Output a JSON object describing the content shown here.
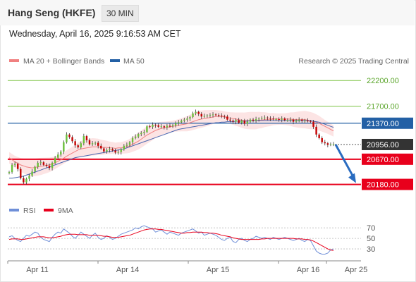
{
  "header": {
    "title": "Hang Seng (HKFE)",
    "timeframe": "30 MIN"
  },
  "datetime": "Wednesday, April 16, 2025 9:16:53 AM CET",
  "legend": {
    "ma20_label": "MA 20 + Bollinger Bands",
    "ma50_label": "MA 50",
    "credit": "Research © 2025 Trading Central",
    "rsi_label": "RSI",
    "rsi_ma_label": "9MA"
  },
  "colors": {
    "support": "#e8001c",
    "resistance": "#7cc442",
    "pivot": "#2360a5",
    "ma20": "#f08080",
    "ma50": "#4a67b0",
    "bollinger_fill": "#fce4e4",
    "candle_up": "#6abf3a",
    "candle_down": "#c40000",
    "rsi": "#6f8fd8",
    "rsi_ma": "#e8001c",
    "arrow": "#2a6cc0"
  },
  "chart_data": {
    "type": "candlestick",
    "ylim": [
      19900,
      22450
    ],
    "x_ticks": [
      "Apr 11",
      "Apr 14",
      "Apr 15",
      "Apr 16",
      "Apr 25"
    ],
    "levels": [
      {
        "value": 22200,
        "label": "22200.00",
        "kind": "resistance"
      },
      {
        "value": 21700,
        "label": "21700.00",
        "kind": "resistance"
      },
      {
        "value": 21370,
        "label": "21370.00",
        "kind": "pivot"
      },
      {
        "value": 20956,
        "label": "20956.00",
        "kind": "last"
      },
      {
        "value": 20670,
        "label": "20670.00",
        "kind": "support"
      },
      {
        "value": 20180,
        "label": "20180.00",
        "kind": "support"
      }
    ],
    "close_series": [
      20420,
      20560,
      20580,
      20480,
      20300,
      20220,
      20290,
      20350,
      20430,
      20520,
      20600,
      20610,
      20560,
      20540,
      20500,
      20600,
      20700,
      20760,
      20820,
      21000,
      21150,
      21100,
      21020,
      20940,
      20900,
      20980,
      21120,
      21040,
      20960,
      20980,
      20990,
      20930,
      20880,
      20820,
      20850,
      20870,
      20840,
      20800,
      20810,
      20860,
      20930,
      20950,
      21000,
      21080,
      21110,
      21160,
      21180,
      21200,
      21310,
      21300,
      21340,
      21330,
      21300,
      21310,
      21290,
      21320,
      21310,
      21330,
      21370,
      21390,
      21420,
      21440,
      21460,
      21490,
      21560,
      21590,
      21550,
      21500,
      21510,
      21520,
      21530,
      21540,
      21530,
      21520,
      21510,
      21500,
      21440,
      21420,
      21400,
      21430,
      21380,
      21420,
      21360,
      21400,
      21440,
      21420,
      21450,
      21460,
      21470,
      21480,
      21470,
      21460,
      21450,
      21450,
      21440,
      21460,
      21430,
      21430,
      21440,
      21400,
      21420,
      21440,
      21420,
      21420,
      21410,
      21400,
      21300,
      21150,
      21080,
      21000,
      20980,
      20950,
      20960,
      20960
    ],
    "ma20_series": [
      20700,
      20660,
      20620,
      20590,
      20560,
      20540,
      20520,
      20510,
      20500,
      20510,
      20520,
      20530,
      20540,
      20550,
      20560,
      20580,
      20600,
      20630,
      20660,
      20690,
      20730,
      20760,
      20790,
      20820,
      20850,
      20870,
      20880,
      20890,
      20900,
      20910,
      20910,
      20910,
      20900,
      20900,
      20900,
      20890,
      20890,
      20880,
      20890,
      20890,
      20900,
      20910,
      20930,
      20960,
      20990,
      21020,
      21060,
      21100,
      21140,
      21170,
      21200,
      21230,
      21250,
      21270,
      21280,
      21290,
      21300,
      21310,
      21320,
      21330,
      21340,
      21350,
      21360,
      21380,
      21400,
      21420,
      21440,
      21450,
      21460,
      21470,
      21480,
      21490,
      21500,
      21500,
      21500,
      21490,
      21480,
      21470,
      21460,
      21450,
      21440,
      21430,
      21420,
      21420,
      21420,
      21420,
      21420,
      21430,
      21430,
      21440,
      21440,
      21440,
      21450,
      21450,
      21450,
      21450,
      21450,
      21450,
      21450,
      21440,
      21440,
      21440,
      21440,
      21440,
      21430,
      21420,
      21410,
      21390,
      21370,
      21340,
      21310,
      21280,
      21250,
      21220
    ],
    "ma50_series": [
      20300,
      20300,
      20310,
      20320,
      20330,
      20340,
      20360,
      20380,
      20400,
      20420,
      20440,
      20460,
      20480,
      20500,
      20520,
      20540,
      20560,
      20580,
      20600,
      20620,
      20640,
      20660,
      20680,
      20700,
      20710,
      20720,
      20730,
      20740,
      20750,
      20760,
      20770,
      20780,
      20790,
      20800,
      20810,
      20820,
      20830,
      20840,
      20850,
      20860,
      20870,
      20890,
      20910,
      20930,
      20950,
      20970,
      20990,
      21010,
      21030,
      21050,
      21070,
      21090,
      21110,
      21130,
      21150,
      21170,
      21190,
      21210,
      21230,
      21250,
      21260,
      21270,
      21280,
      21290,
      21300,
      21310,
      21320,
      21330,
      21340,
      21350,
      21360,
      21370,
      21380,
      21380,
      21390,
      21390,
      21400,
      21400,
      21400,
      21410,
      21410,
      21410,
      21410,
      21410,
      21420,
      21420,
      21420,
      21420,
      21420,
      21420,
      21420,
      21420,
      21420,
      21420,
      21420,
      21420,
      21420,
      21420,
      21420,
      21420,
      21420,
      21420,
      21420,
      21420,
      21420,
      21420,
      21410,
      21400,
      21390,
      21370,
      21350,
      21330,
      21310,
      21290
    ],
    "rsi": {
      "ylim": [
        10,
        85
      ],
      "ticks": [
        70,
        50,
        30
      ],
      "rsi_series": [
        53,
        55,
        50,
        46,
        44,
        50,
        56,
        54,
        58,
        62,
        60,
        52,
        48,
        46,
        44,
        52,
        58,
        62,
        60,
        68,
        64,
        60,
        54,
        50,
        56,
        62,
        58,
        54,
        50,
        56,
        60,
        52,
        48,
        50,
        55,
        52,
        48,
        50,
        54,
        58,
        60,
        62,
        64,
        66,
        70,
        68,
        72,
        74,
        72,
        70,
        68,
        62,
        64,
        66,
        62,
        58,
        62,
        60,
        58,
        56,
        60,
        62,
        64,
        66,
        68,
        64,
        60,
        62,
        56,
        58,
        60,
        58,
        56,
        52,
        48,
        46,
        50,
        52,
        44,
        42,
        48,
        50,
        46,
        44,
        48,
        50,
        54,
        52,
        50,
        52,
        50,
        48,
        52,
        50,
        48,
        50,
        52,
        50,
        48,
        46,
        48,
        50,
        46,
        44,
        48,
        46,
        36,
        26,
        22,
        20,
        20,
        22,
        28,
        30
      ],
      "rsi_ma_series": [
        48,
        49,
        49,
        49,
        48,
        48,
        49,
        50,
        51,
        52,
        53,
        53,
        53,
        52,
        51,
        51,
        52,
        53,
        54,
        56,
        57,
        58,
        58,
        58,
        57,
        57,
        57,
        57,
        56,
        56,
        56,
        56,
        55,
        54,
        54,
        53,
        52,
        52,
        52,
        53,
        54,
        55,
        56,
        58,
        60,
        62,
        64,
        66,
        67,
        68,
        68,
        68,
        67,
        67,
        66,
        65,
        64,
        63,
        62,
        61,
        60,
        60,
        61,
        61,
        62,
        62,
        62,
        62,
        61,
        61,
        60,
        60,
        59,
        58,
        56,
        55,
        54,
        53,
        51,
        50,
        49,
        48,
        48,
        48,
        48,
        48,
        48,
        48,
        49,
        49,
        50,
        50,
        50,
        50,
        50,
        50,
        50,
        50,
        50,
        50,
        49,
        49,
        49,
        48,
        48,
        47,
        45,
        42,
        39,
        36,
        33,
        30,
        28,
        27
      ]
    }
  }
}
